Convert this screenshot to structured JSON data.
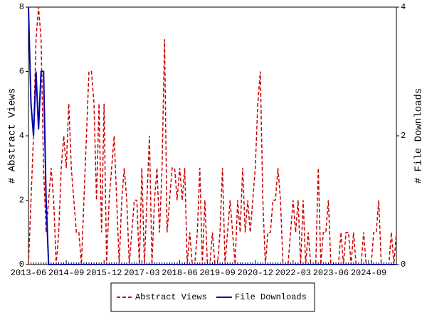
{
  "chart_data": {
    "type": "line",
    "y_label": "# Abstract Views",
    "y2_label": "# File Downloads",
    "categories": [
      "2013-06",
      null,
      null,
      null,
      null,
      null,
      null,
      null,
      null,
      null,
      null,
      null,
      null,
      null,
      null,
      "2014-09",
      null,
      null,
      null,
      null,
      null,
      null,
      null,
      null,
      null,
      null,
      null,
      null,
      null,
      null,
      "2015-12",
      null,
      null,
      null,
      null,
      null,
      null,
      null,
      null,
      null,
      null,
      null,
      null,
      null,
      null,
      "2017-03",
      null,
      null,
      null,
      null,
      null,
      null,
      null,
      null,
      null,
      null,
      null,
      null,
      null,
      null,
      "2018-06",
      null,
      null,
      null,
      null,
      null,
      null,
      null,
      null,
      null,
      null,
      null,
      null,
      null,
      null,
      "2019-09",
      null,
      null,
      null,
      null,
      null,
      null,
      null,
      null,
      null,
      null,
      null,
      null,
      null,
      null,
      "2020-12",
      null,
      null,
      null,
      null,
      null,
      null,
      null,
      null,
      null,
      null,
      null,
      null,
      null,
      null,
      "2022-03",
      null,
      null,
      null,
      null,
      null,
      null,
      null,
      null,
      null,
      null,
      null,
      null,
      null,
      null,
      "2023-06",
      null,
      null,
      null,
      null,
      null,
      null,
      null,
      null,
      null,
      null,
      null,
      null,
      null,
      null,
      "2024-09",
      null,
      null,
      null,
      null,
      null,
      null,
      null,
      null,
      null,
      null,
      null
    ],
    "series": [
      {
        "name": "Abstract Views",
        "color": "#cc0000",
        "dash": true,
        "values": [
          0,
          2,
          4,
          7,
          8,
          7,
          3,
          1,
          2,
          3,
          2,
          0,
          1,
          3,
          4,
          3,
          5,
          3,
          2,
          1,
          1,
          0,
          2,
          4,
          6,
          6,
          5,
          2,
          5,
          1,
          5,
          0,
          2,
          3,
          4,
          2,
          0,
          2,
          3,
          2,
          0,
          1,
          2,
          2,
          0,
          3,
          0,
          2,
          4,
          0,
          2,
          3,
          1,
          3,
          7,
          1,
          2,
          3,
          3,
          2,
          3,
          2,
          3,
          0,
          1,
          0,
          0,
          1,
          3,
          0,
          2,
          0,
          0,
          1,
          0,
          0,
          1,
          3,
          0,
          1,
          2,
          1,
          0,
          2,
          1,
          3,
          1,
          2,
          1,
          2,
          3,
          5,
          6,
          2,
          0,
          1,
          1,
          2,
          2,
          3,
          2,
          0,
          0,
          0,
          1,
          2,
          1,
          2,
          0,
          2,
          0,
          1,
          0,
          0,
          0,
          3,
          0,
          1,
          1,
          2,
          0,
          0,
          0,
          0,
          1,
          0,
          1,
          1,
          0,
          1,
          0,
          0,
          0,
          1,
          0,
          0,
          0,
          1,
          1,
          2,
          0,
          0,
          0,
          0,
          1,
          0,
          1
        ]
      },
      {
        "name": "File Downloads",
        "color": "#0000aa",
        "axis": "y2",
        "values": [
          4,
          2.5,
          2,
          3,
          2.1,
          3,
          3,
          1,
          0,
          0,
          0,
          0,
          0,
          0,
          0,
          0,
          0,
          0,
          0,
          0,
          0,
          0,
          0,
          0,
          0,
          0,
          0,
          0,
          0,
          0,
          0,
          0,
          0,
          0,
          0,
          0,
          0,
          0,
          0,
          0,
          0,
          0,
          0,
          0,
          0,
          0,
          0,
          0,
          0,
          0,
          0,
          0,
          0,
          0,
          0,
          0,
          0,
          0,
          0,
          0,
          0,
          0,
          0,
          0,
          0,
          0,
          0,
          0,
          0,
          0,
          0,
          0,
          0,
          0,
          0,
          0,
          0,
          0,
          0,
          0,
          0,
          0,
          0,
          0,
          0,
          0,
          0,
          0,
          0,
          0,
          0,
          0,
          0,
          0,
          0,
          0,
          0,
          0,
          0,
          0,
          0,
          0,
          0,
          0,
          0,
          0,
          0,
          0,
          0,
          0,
          0,
          0,
          0,
          0,
          0,
          0,
          0,
          0,
          0,
          0,
          0,
          0,
          0,
          0,
          0,
          0,
          0,
          0,
          0,
          0,
          0,
          0,
          0,
          0,
          0,
          0,
          0,
          0,
          0,
          0,
          0,
          0,
          0,
          0,
          0,
          0,
          0
        ]
      }
    ],
    "ylim": [
      0,
      8
    ],
    "yticks": [
      0,
      2,
      4,
      6,
      8
    ],
    "y2lim": [
      0,
      4
    ],
    "y2ticks": [
      0,
      2,
      4
    ]
  }
}
